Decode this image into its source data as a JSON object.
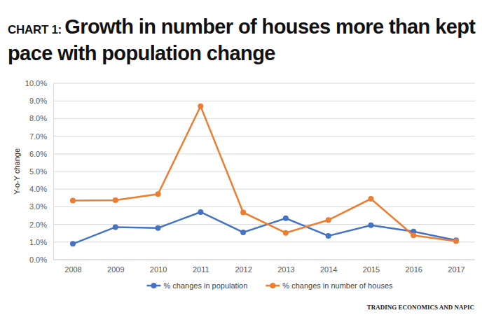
{
  "chart_data": {
    "type": "line",
    "title": "CHART 1: Growth in number of houses more than kept pace with population change",
    "y_label": "Y-o-Y change",
    "source": "TRADING ECONOMICS AND NAPIC",
    "categories": [
      "2008",
      "2009",
      "2010",
      "2011",
      "2012",
      "2013",
      "2014",
      "2015",
      "2016",
      "2017"
    ],
    "series": [
      {
        "name": "% changes in population",
        "color": "#4472c4",
        "marker": "circle",
        "values": [
          0.9,
          1.85,
          1.8,
          2.7,
          1.55,
          2.35,
          1.35,
          1.95,
          1.6,
          1.1
        ]
      },
      {
        "name": "% changes in number of houses",
        "color": "#ed7d31",
        "marker": "circle",
        "values": [
          3.35,
          3.37,
          3.72,
          8.7,
          2.68,
          1.52,
          2.25,
          3.45,
          1.38,
          1.05
        ]
      }
    ],
    "ylim": [
      0,
      10
    ],
    "yticks": [
      {
        "value": 0,
        "label": "0.0%"
      },
      {
        "value": 1,
        "label": "1.0%"
      },
      {
        "value": 2,
        "label": "2.0%"
      },
      {
        "value": 3,
        "label": "3.0%"
      },
      {
        "value": 4,
        "label": "4.0%"
      },
      {
        "value": 5,
        "label": "5.0%"
      },
      {
        "value": 6,
        "label": "6.0%"
      },
      {
        "value": 7,
        "label": "7.0%"
      },
      {
        "value": 8,
        "label": "8.0%"
      },
      {
        "value": 9,
        "label": "9.0%"
      },
      {
        "value": 10,
        "label": "10.0%"
      }
    ],
    "grid": true,
    "legend": "bottom"
  }
}
